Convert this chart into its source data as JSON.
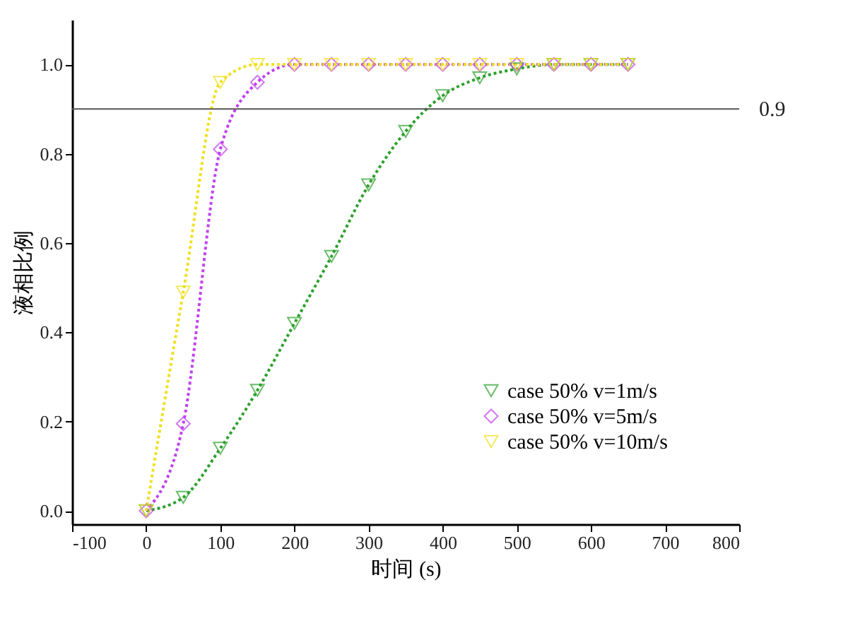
{
  "chart_data": {
    "type": "line",
    "xlabel": "时间 (s)",
    "ylabel": "液相比例",
    "x": [
      0,
      50,
      100,
      150,
      200,
      250,
      300,
      350,
      400,
      450,
      500,
      550,
      600,
      650
    ],
    "series": [
      {
        "name": "case 50% v=1m/s",
        "color": "#2ca02c",
        "marker": "triangle",
        "values": [
          0,
          0.03,
          0.14,
          0.27,
          0.42,
          0.57,
          0.73,
          0.85,
          0.93,
          0.97,
          0.99,
          1.0,
          1.0,
          1.0
        ]
      },
      {
        "name": "case 50% v=5m/s",
        "color": "#c040f0",
        "marker": "diamond",
        "values": [
          0,
          0.195,
          0.81,
          0.96,
          1.0,
          1.0,
          1.0,
          1.0,
          1.0,
          1.0,
          1.0,
          1.0,
          1.0,
          1.0
        ]
      },
      {
        "name": "case 50% v=10m/s",
        "color": "#f0e020",
        "marker": "triangle",
        "values": [
          0,
          0.49,
          0.96,
          1.0,
          1.0,
          1.0,
          1.0,
          1.0,
          1.0,
          1.0,
          1.0,
          1.0,
          1.0,
          1.0
        ]
      }
    ],
    "xlim": [
      -100,
      800
    ],
    "xticks": [
      -100,
      0,
      100,
      200,
      300,
      400,
      500,
      600,
      700,
      800
    ],
    "ylim": [
      -0.03,
      1.1
    ],
    "yticks": [
      {
        "value": 0,
        "label": "0.0"
      },
      {
        "value": 0.2,
        "label": "0.2"
      },
      {
        "value": 0.4,
        "label": "0.4"
      },
      {
        "value": 0.6,
        "label": "0.6"
      },
      {
        "value": 0.8,
        "label": "0.8"
      },
      {
        "value": 1,
        "label": "1.0"
      }
    ],
    "ref_lines": [
      {
        "axis": "y",
        "value": 0.9,
        "label": "0.9",
        "color": "#555555"
      }
    ],
    "grid": false,
    "legend": "bottom right",
    "line_style": "dotted"
  }
}
